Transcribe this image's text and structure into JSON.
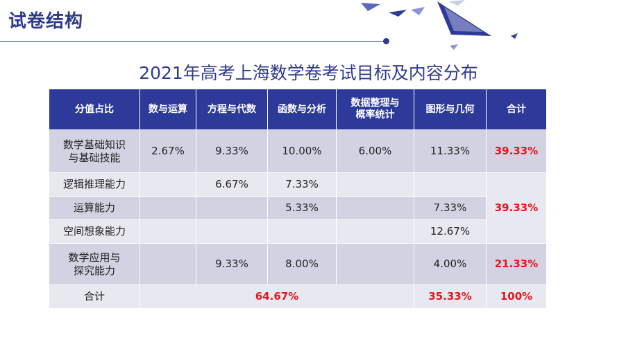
{
  "header": {
    "title": "试卷结构"
  },
  "main_title": "2021年高考上海数学卷考试目标及内容分布",
  "table": {
    "headers": [
      "分值占比",
      "数与运算",
      "方程与代数",
      "函数与分析",
      "数据整理与\n概率统计",
      "图形与几何",
      "合计"
    ],
    "rows": {
      "basic": {
        "label": "数学基础知识\n与基础技能",
        "c1": "2.67%",
        "c2": "9.33%",
        "c3": "10.00%",
        "c4": "6.00%",
        "c5": "11.33%",
        "total": "39.33%"
      },
      "logic": {
        "label": "逻辑推理能力",
        "c2": "6.67%",
        "c3": "7.33%"
      },
      "calc": {
        "label": "运算能力",
        "c3": "5.33%",
        "c5": "7.33%"
      },
      "space": {
        "label": "空间想象能力",
        "c5": "12.67%"
      },
      "group_total": "39.33%",
      "apply": {
        "label": "数学应用与\n探究能力",
        "c2": "9.33%",
        "c3": "8.00%",
        "c5": "4.00%",
        "total": "21.33%"
      },
      "sum": {
        "label": "合计",
        "c1_4": "64.67%",
        "c5": "35.33%",
        "total": "100%"
      }
    }
  }
}
